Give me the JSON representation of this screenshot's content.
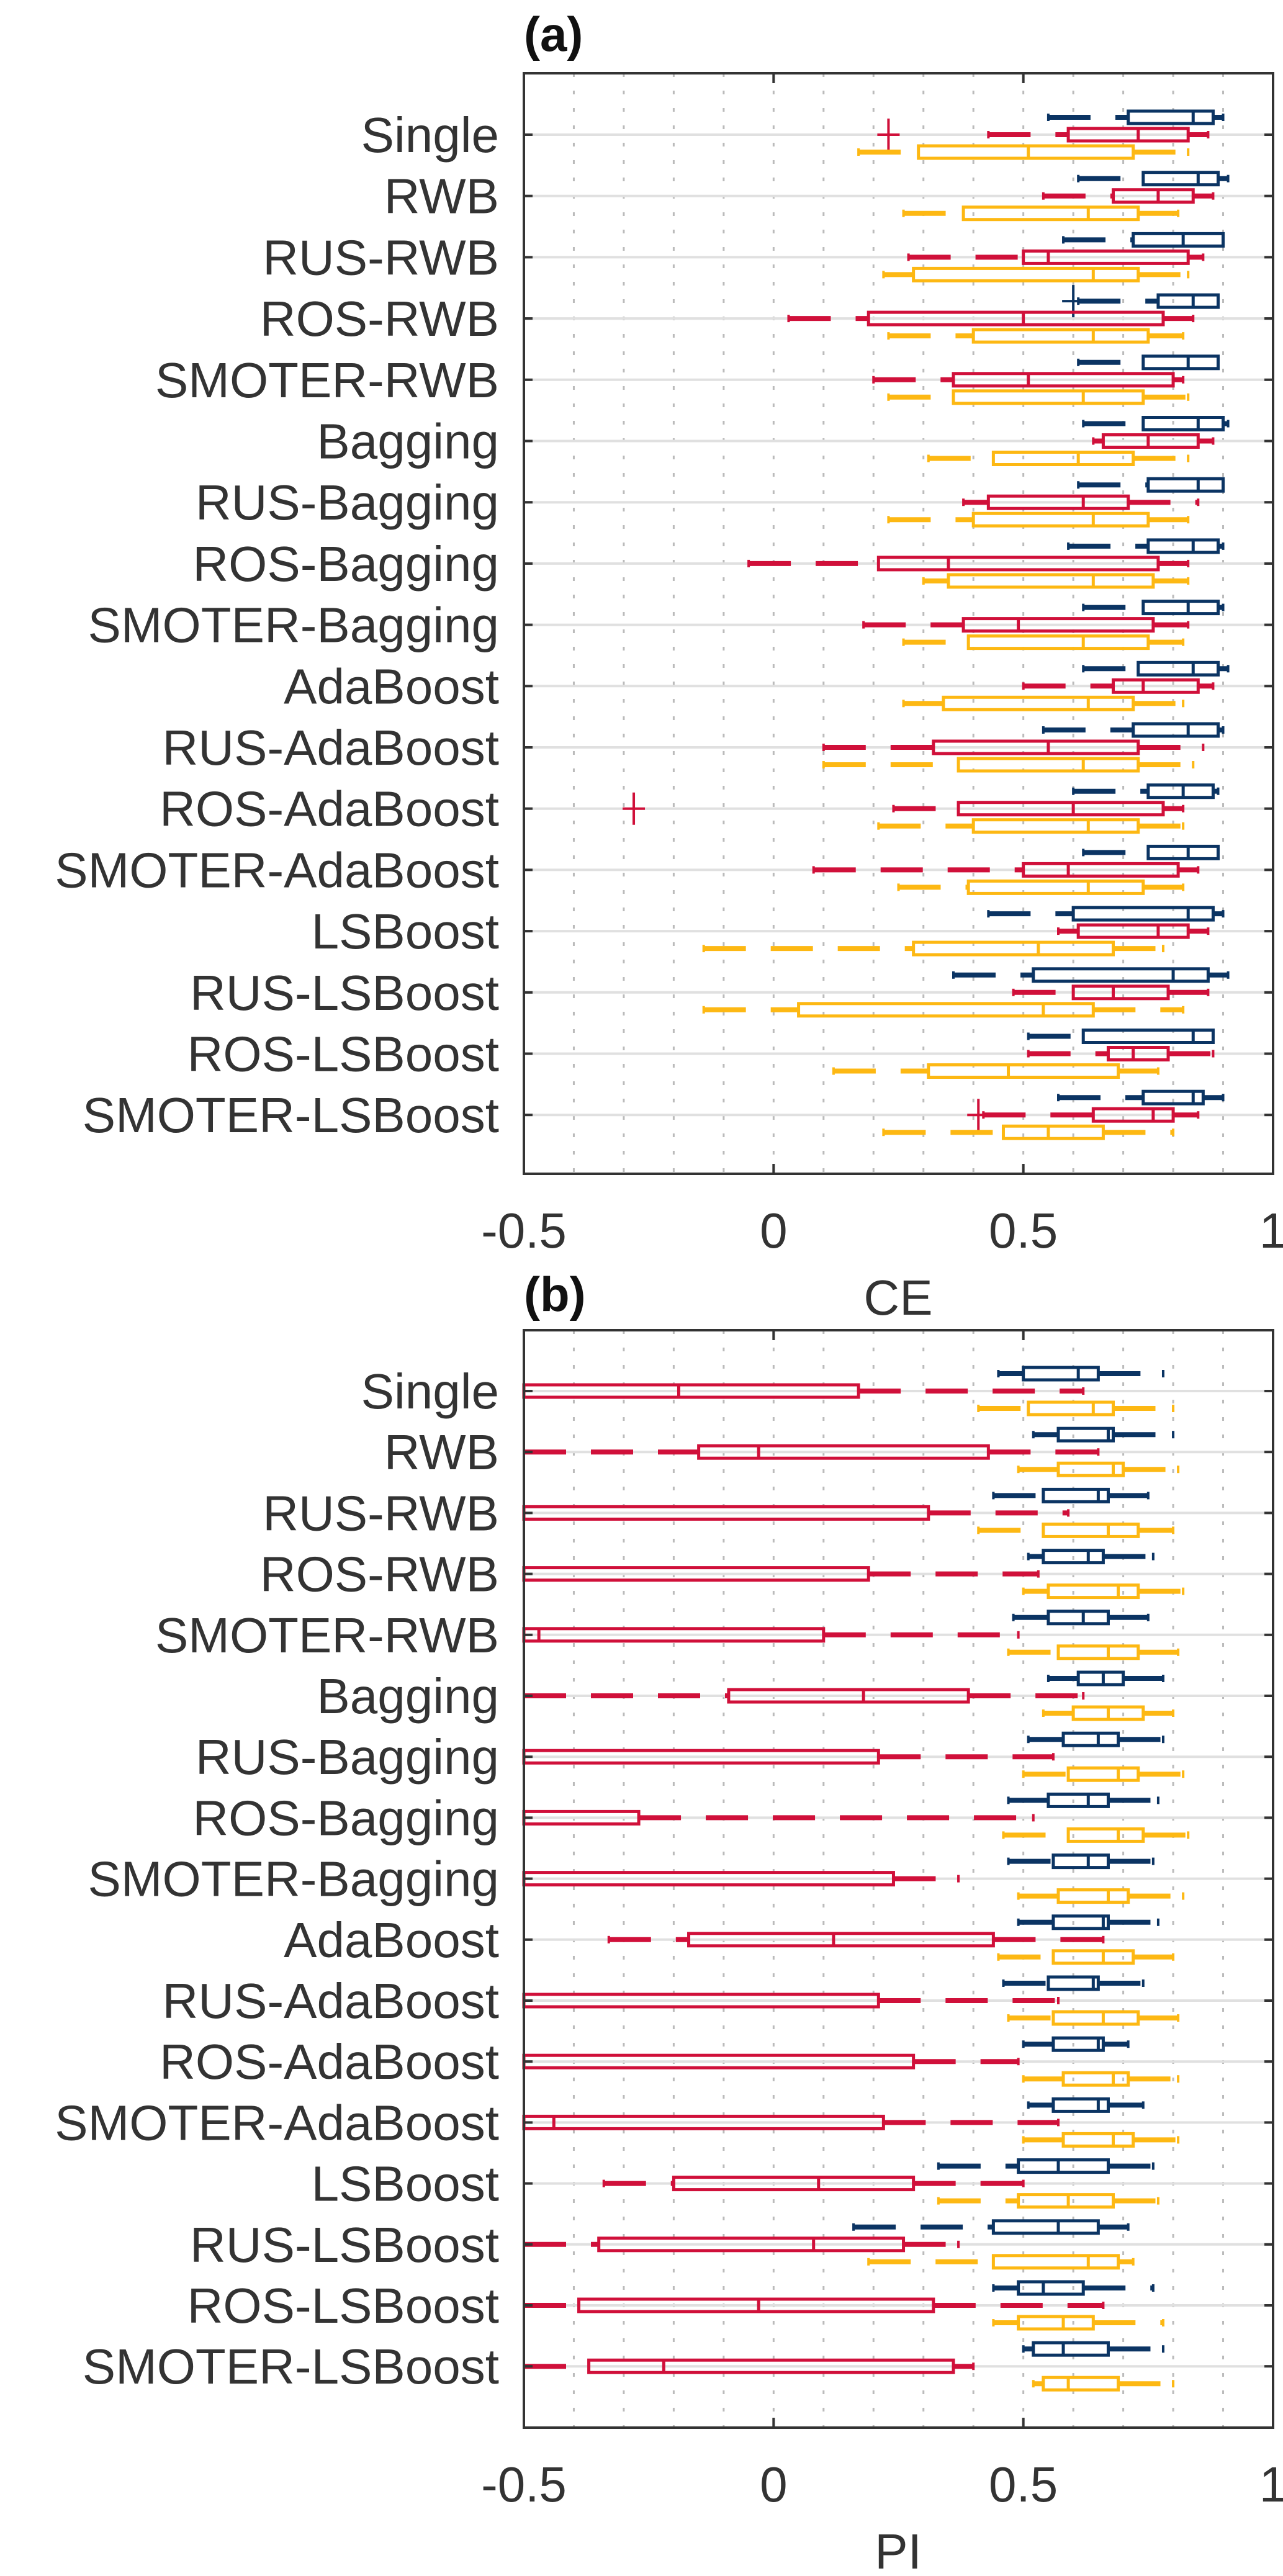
{
  "figure": {
    "panels": [
      "(a)",
      "(b)"
    ]
  },
  "colors": {
    "blue": "#0b3463",
    "red": "#d0103a",
    "yellow": "#fdb813",
    "axis": "#333333",
    "grid_dotted": "#bbbbbb",
    "category_line": "#e0e0e0"
  },
  "chart_data": [
    {
      "type": "box",
      "orientation": "horizontal",
      "title": "(a)",
      "xlabel": "CE",
      "ylabel": "",
      "xlim": [
        -0.5,
        1
      ],
      "xticks": [
        -0.5,
        0,
        0.5,
        1
      ],
      "xtick_labels": [
        "-0.5",
        "0",
        "0.5",
        "1"
      ],
      "grid": "vertical dotted minor every 0.1",
      "categories": [
        "Single",
        "RWB",
        "RUS-RWB",
        "ROS-RWB",
        "SMOTER-RWB",
        "Bagging",
        "RUS-Bagging",
        "ROS-Bagging",
        "SMOTER-Bagging",
        "AdaBoost",
        "RUS-AdaBoost",
        "ROS-AdaBoost",
        "SMOTER-AdaBoost",
        "LSBoost",
        "RUS-LSBoost",
        "ROS-LSBoost",
        "SMOTER-LSBoost"
      ],
      "series": [
        {
          "name": "blue",
          "color": "#0b3463",
          "boxes": [
            {
              "min": 0.55,
              "q1": 0.71,
              "median": 0.84,
              "q3": 0.88,
              "max": 0.9
            },
            {
              "min": 0.61,
              "q1": 0.74,
              "median": 0.85,
              "q3": 0.89,
              "max": 0.91
            },
            {
              "min": 0.58,
              "q1": 0.72,
              "median": 0.82,
              "q3": 0.9,
              "max": 0.9
            },
            {
              "min": 0.61,
              "q1": 0.77,
              "median": 0.84,
              "q3": 0.89,
              "max": 0.89,
              "outliers": [
                0.6
              ]
            },
            {
              "min": 0.61,
              "q1": 0.74,
              "median": 0.83,
              "q3": 0.89,
              "max": 0.89
            },
            {
              "min": 0.62,
              "q1": 0.74,
              "median": 0.85,
              "q3": 0.9,
              "max": 0.91
            },
            {
              "min": 0.61,
              "q1": 0.75,
              "median": 0.85,
              "q3": 0.9,
              "max": 0.9
            },
            {
              "min": 0.59,
              "q1": 0.75,
              "median": 0.84,
              "q3": 0.89,
              "max": 0.9
            },
            {
              "min": 0.62,
              "q1": 0.74,
              "median": 0.83,
              "q3": 0.89,
              "max": 0.9
            },
            {
              "min": 0.62,
              "q1": 0.73,
              "median": 0.84,
              "q3": 0.89,
              "max": 0.91
            },
            {
              "min": 0.54,
              "q1": 0.72,
              "median": 0.83,
              "q3": 0.89,
              "max": 0.9
            },
            {
              "min": 0.6,
              "q1": 0.75,
              "median": 0.82,
              "q3": 0.88,
              "max": 0.89
            },
            {
              "min": 0.62,
              "q1": 0.75,
              "median": 0.83,
              "q3": 0.89,
              "max": 0.89
            },
            {
              "min": 0.43,
              "q1": 0.6,
              "median": 0.83,
              "q3": 0.88,
              "max": 0.9
            },
            {
              "min": 0.36,
              "q1": 0.52,
              "median": 0.8,
              "q3": 0.87,
              "max": 0.91
            },
            {
              "min": 0.51,
              "q1": 0.62,
              "median": 0.84,
              "q3": 0.88,
              "max": 0.88
            },
            {
              "min": 0.57,
              "q1": 0.74,
              "median": 0.84,
              "q3": 0.86,
              "max": 0.9
            }
          ]
        },
        {
          "name": "red",
          "color": "#d0103a",
          "boxes": [
            {
              "min": 0.43,
              "q1": 0.59,
              "median": 0.73,
              "q3": 0.83,
              "max": 0.87,
              "outliers": [
                0.23
              ]
            },
            {
              "min": 0.54,
              "q1": 0.68,
              "median": 0.77,
              "q3": 0.84,
              "max": 0.88
            },
            {
              "min": 0.27,
              "q1": 0.5,
              "median": 0.55,
              "q3": 0.83,
              "max": 0.86
            },
            {
              "min": 0.03,
              "q1": 0.19,
              "median": 0.5,
              "q3": 0.78,
              "max": 0.84
            },
            {
              "min": 0.2,
              "q1": 0.36,
              "median": 0.51,
              "q3": 0.8,
              "max": 0.82
            },
            {
              "min": 0.64,
              "q1": 0.66,
              "median": 0.75,
              "q3": 0.85,
              "max": 0.88
            },
            {
              "min": 0.38,
              "q1": 0.43,
              "median": 0.62,
              "q3": 0.71,
              "max": 0.85
            },
            {
              "min": -0.05,
              "q1": 0.21,
              "median": 0.35,
              "q3": 0.77,
              "max": 0.83
            },
            {
              "min": 0.18,
              "q1": 0.38,
              "median": 0.49,
              "q3": 0.76,
              "max": 0.83
            },
            {
              "min": 0.5,
              "q1": 0.68,
              "median": 0.74,
              "q3": 0.85,
              "max": 0.88
            },
            {
              "min": 0.1,
              "q1": 0.32,
              "median": 0.55,
              "q3": 0.73,
              "max": 0.86
            },
            {
              "min": 0.24,
              "q1": 0.37,
              "median": 0.6,
              "q3": 0.78,
              "max": 0.82,
              "outliers": [
                -0.28
              ]
            },
            {
              "min": 0.08,
              "q1": 0.5,
              "median": 0.59,
              "q3": 0.81,
              "max": 0.85
            },
            {
              "min": 0.57,
              "q1": 0.61,
              "median": 0.77,
              "q3": 0.83,
              "max": 0.87
            },
            {
              "min": 0.48,
              "q1": 0.6,
              "median": 0.68,
              "q3": 0.79,
              "max": 0.87
            },
            {
              "min": 0.51,
              "q1": 0.67,
              "median": 0.72,
              "q3": 0.79,
              "max": 0.88
            },
            {
              "min": 0.42,
              "q1": 0.64,
              "median": 0.76,
              "q3": 0.8,
              "max": 0.85,
              "outliers": [
                0.41
              ]
            }
          ]
        },
        {
          "name": "yellow",
          "color": "#fdb813",
          "boxes": [
            {
              "min": 0.17,
              "q1": 0.29,
              "median": 0.51,
              "q3": 0.72,
              "max": 0.83
            },
            {
              "min": 0.26,
              "q1": 0.38,
              "median": 0.63,
              "q3": 0.73,
              "max": 0.81
            },
            {
              "min": 0.22,
              "q1": 0.28,
              "median": 0.64,
              "q3": 0.73,
              "max": 0.83
            },
            {
              "min": 0.23,
              "q1": 0.4,
              "median": 0.64,
              "q3": 0.75,
              "max": 0.82
            },
            {
              "min": 0.23,
              "q1": 0.36,
              "median": 0.62,
              "q3": 0.74,
              "max": 0.83
            },
            {
              "min": 0.31,
              "q1": 0.44,
              "median": 0.61,
              "q3": 0.72,
              "max": 0.83
            },
            {
              "min": 0.23,
              "q1": 0.4,
              "median": 0.64,
              "q3": 0.75,
              "max": 0.83
            },
            {
              "min": 0.3,
              "q1": 0.35,
              "median": 0.64,
              "q3": 0.76,
              "max": 0.83
            },
            {
              "min": 0.26,
              "q1": 0.39,
              "median": 0.62,
              "q3": 0.75,
              "max": 0.82
            },
            {
              "min": 0.26,
              "q1": 0.34,
              "median": 0.63,
              "q3": 0.72,
              "max": 0.82
            },
            {
              "min": 0.1,
              "q1": 0.37,
              "median": 0.62,
              "q3": 0.73,
              "max": 0.84
            },
            {
              "min": 0.21,
              "q1": 0.4,
              "median": 0.63,
              "q3": 0.73,
              "max": 0.82
            },
            {
              "min": 0.25,
              "q1": 0.39,
              "median": 0.63,
              "q3": 0.74,
              "max": 0.82
            },
            {
              "min": -0.14,
              "q1": 0.28,
              "median": 0.53,
              "q3": 0.68,
              "max": 0.78
            },
            {
              "min": -0.14,
              "q1": 0.05,
              "median": 0.54,
              "q3": 0.64,
              "max": 0.82
            },
            {
              "min": 0.12,
              "q1": 0.31,
              "median": 0.47,
              "q3": 0.69,
              "max": 0.77
            },
            {
              "min": 0.22,
              "q1": 0.46,
              "median": 0.55,
              "q3": 0.66,
              "max": 0.8
            }
          ]
        }
      ]
    },
    {
      "type": "box",
      "orientation": "horizontal",
      "title": "(b)",
      "xlabel": "PI",
      "ylabel": "",
      "xlim": [
        -0.5,
        1
      ],
      "xticks": [
        -0.5,
        0,
        0.5,
        1
      ],
      "xtick_labels": [
        "-0.5",
        "0",
        "0.5",
        "1"
      ],
      "grid": "vertical dotted minor every 0.1",
      "categories": [
        "Single",
        "RWB",
        "RUS-RWB",
        "ROS-RWB",
        "SMOTER-RWB",
        "Bagging",
        "RUS-Bagging",
        "ROS-Bagging",
        "SMOTER-Bagging",
        "AdaBoost",
        "RUS-AdaBoost",
        "ROS-AdaBoost",
        "SMOTER-AdaBoost",
        "LSBoost",
        "RUS-LSBoost",
        "ROS-LSBoost",
        "SMOTER-LSBoost"
      ],
      "note": "red boxes extend below the axis minimum (-0.5) and are clipped",
      "series": [
        {
          "name": "blue",
          "color": "#0b3463",
          "boxes": [
            {
              "min": 0.45,
              "q1": 0.5,
              "median": 0.61,
              "q3": 0.65,
              "max": 0.78
            },
            {
              "min": 0.52,
              "q1": 0.57,
              "median": 0.67,
              "q3": 0.68,
              "max": 0.8
            },
            {
              "min": 0.44,
              "q1": 0.54,
              "median": 0.65,
              "q3": 0.67,
              "max": 0.75
            },
            {
              "min": 0.51,
              "q1": 0.54,
              "median": 0.63,
              "q3": 0.66,
              "max": 0.76
            },
            {
              "min": 0.48,
              "q1": 0.55,
              "median": 0.62,
              "q3": 0.67,
              "max": 0.75
            },
            {
              "min": 0.55,
              "q1": 0.61,
              "median": 0.66,
              "q3": 0.7,
              "max": 0.78
            },
            {
              "min": 0.51,
              "q1": 0.58,
              "median": 0.65,
              "q3": 0.69,
              "max": 0.78
            },
            {
              "min": 0.47,
              "q1": 0.55,
              "median": 0.63,
              "q3": 0.67,
              "max": 0.77
            },
            {
              "min": 0.47,
              "q1": 0.56,
              "median": 0.63,
              "q3": 0.67,
              "max": 0.76
            },
            {
              "min": 0.49,
              "q1": 0.56,
              "median": 0.66,
              "q3": 0.67,
              "max": 0.77
            },
            {
              "min": 0.46,
              "q1": 0.55,
              "median": 0.64,
              "q3": 0.65,
              "max": 0.74
            },
            {
              "min": 0.5,
              "q1": 0.56,
              "median": 0.65,
              "q3": 0.66,
              "max": 0.71
            },
            {
              "min": 0.51,
              "q1": 0.56,
              "median": 0.65,
              "q3": 0.67,
              "max": 0.74
            },
            {
              "min": 0.33,
              "q1": 0.49,
              "median": 0.57,
              "q3": 0.67,
              "max": 0.76
            },
            {
              "min": 0.16,
              "q1": 0.44,
              "median": 0.57,
              "q3": 0.65,
              "max": 0.71
            },
            {
              "min": 0.44,
              "q1": 0.49,
              "median": 0.54,
              "q3": 0.62,
              "max": 0.76
            },
            {
              "min": 0.5,
              "q1": 0.52,
              "median": 0.58,
              "q3": 0.67,
              "max": 0.78
            }
          ]
        },
        {
          "name": "red",
          "color": "#d0103a",
          "boxes": [
            {
              "min": -0.5,
              "q1": -0.5,
              "median": -0.19,
              "q3": 0.17,
              "max": 0.62
            },
            {
              "min": -0.5,
              "q1": -0.15,
              "median": -0.03,
              "q3": 0.43,
              "max": 0.65
            },
            {
              "min": -0.5,
              "q1": -0.5,
              "median": -0.5,
              "q3": 0.31,
              "max": 0.59
            },
            {
              "min": -0.5,
              "q1": -0.5,
              "median": -0.5,
              "q3": 0.19,
              "max": 0.53
            },
            {
              "min": -0.5,
              "q1": -0.5,
              "median": -0.47,
              "q3": 0.1,
              "max": 0.49
            },
            {
              "min": -0.5,
              "q1": -0.09,
              "median": 0.18,
              "q3": 0.39,
              "max": 0.62
            },
            {
              "min": -0.5,
              "q1": -0.5,
              "median": -0.5,
              "q3": 0.21,
              "max": 0.56
            },
            {
              "min": -0.5,
              "q1": -0.5,
              "median": -0.5,
              "q3": -0.27,
              "max": 0.52
            },
            {
              "min": -0.5,
              "q1": -0.5,
              "median": -0.5,
              "q3": 0.24,
              "max": 0.37
            },
            {
              "min": -0.33,
              "q1": -0.17,
              "median": 0.12,
              "q3": 0.44,
              "max": 0.66
            },
            {
              "min": -0.5,
              "q1": -0.5,
              "median": -0.5,
              "q3": 0.21,
              "max": 0.57
            },
            {
              "min": -0.5,
              "q1": -0.5,
              "median": -0.5,
              "q3": 0.28,
              "max": 0.49
            },
            {
              "min": -0.5,
              "q1": -0.5,
              "median": -0.44,
              "q3": 0.22,
              "max": 0.57
            },
            {
              "min": -0.34,
              "q1": -0.2,
              "median": 0.09,
              "q3": 0.28,
              "max": 0.5
            },
            {
              "min": -0.5,
              "q1": -0.35,
              "median": 0.08,
              "q3": 0.26,
              "max": 0.37
            },
            {
              "min": -0.5,
              "q1": -0.39,
              "median": -0.03,
              "q3": 0.32,
              "max": 0.66
            },
            {
              "min": -0.5,
              "q1": -0.37,
              "median": -0.22,
              "q3": 0.36,
              "max": 0.4
            }
          ]
        },
        {
          "name": "yellow",
          "color": "#fdb813",
          "boxes": [
            {
              "min": 0.41,
              "q1": 0.51,
              "median": 0.64,
              "q3": 0.68,
              "max": 0.8
            },
            {
              "min": 0.49,
              "q1": 0.57,
              "median": 0.68,
              "q3": 0.7,
              "max": 0.81
            },
            {
              "min": 0.41,
              "q1": 0.54,
              "median": 0.67,
              "q3": 0.73,
              "max": 0.8
            },
            {
              "min": 0.5,
              "q1": 0.55,
              "median": 0.69,
              "q3": 0.73,
              "max": 0.82
            },
            {
              "min": 0.47,
              "q1": 0.57,
              "median": 0.67,
              "q3": 0.73,
              "max": 0.81
            },
            {
              "min": 0.54,
              "q1": 0.6,
              "median": 0.67,
              "q3": 0.74,
              "max": 0.8
            },
            {
              "min": 0.5,
              "q1": 0.59,
              "median": 0.69,
              "q3": 0.73,
              "max": 0.82
            },
            {
              "min": 0.46,
              "q1": 0.59,
              "median": 0.69,
              "q3": 0.74,
              "max": 0.83
            },
            {
              "min": 0.49,
              "q1": 0.57,
              "median": 0.67,
              "q3": 0.71,
              "max": 0.82
            },
            {
              "min": 0.45,
              "q1": 0.56,
              "median": 0.66,
              "q3": 0.72,
              "max": 0.8
            },
            {
              "min": 0.47,
              "q1": 0.56,
              "median": 0.66,
              "q3": 0.73,
              "max": 0.81
            },
            {
              "min": 0.5,
              "q1": 0.58,
              "median": 0.68,
              "q3": 0.71,
              "max": 0.81
            },
            {
              "min": 0.5,
              "q1": 0.58,
              "median": 0.68,
              "q3": 0.72,
              "max": 0.81
            },
            {
              "min": 0.33,
              "q1": 0.49,
              "median": 0.59,
              "q3": 0.68,
              "max": 0.77
            },
            {
              "min": 0.19,
              "q1": 0.44,
              "median": 0.63,
              "q3": 0.69,
              "max": 0.72
            },
            {
              "min": 0.44,
              "q1": 0.49,
              "median": 0.58,
              "q3": 0.64,
              "max": 0.78
            },
            {
              "min": 0.52,
              "q1": 0.54,
              "median": 0.59,
              "q3": 0.69,
              "max": 0.8
            }
          ]
        }
      ]
    }
  ]
}
